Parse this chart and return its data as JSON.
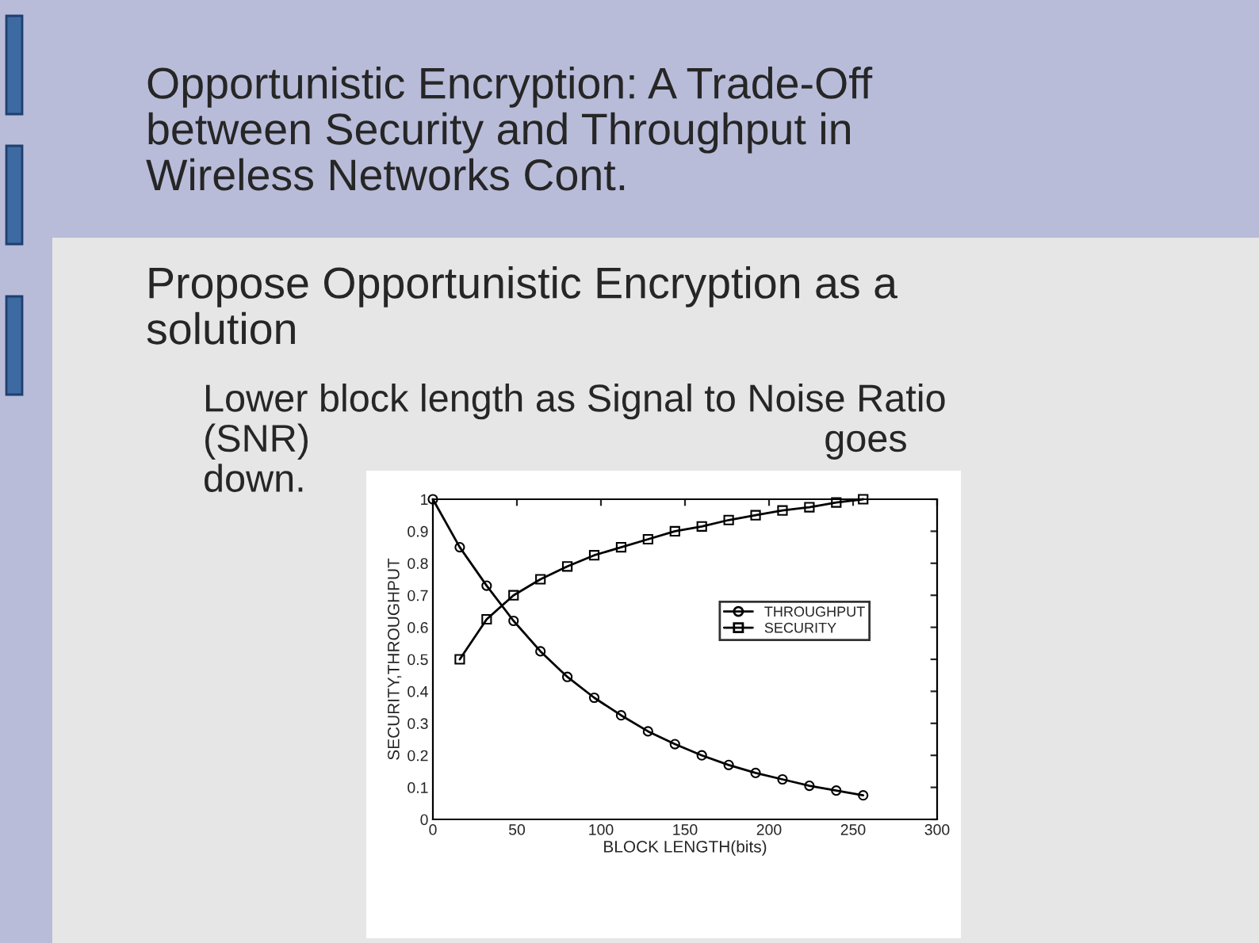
{
  "chart_data": {
    "type": "line",
    "title": "Opportunistic Encryption: A Trade-Off\nbetween Security and Throughput in\nWireless Networks Cont.",
    "annotations": [
      "Propose Opportunistic Encryption as a\nsolution",
      "Lower block length as Signal to Noise Ratio\n(SNR)                                                goes\ndown."
    ],
    "xlabel": "BLOCK LENGTH(bits)",
    "ylabel": "SECURITY,THROUGHPUT",
    "series": [
      {
        "name": "THROUGHPUT",
        "color": "#000000",
        "marker": "circle",
        "x": [
          0,
          16,
          32,
          48,
          64,
          80,
          96,
          112,
          128,
          144,
          160,
          176,
          192,
          208,
          224,
          240,
          256
        ],
        "values": [
          1.0,
          0.85,
          0.73,
          0.62,
          0.525,
          0.445,
          0.38,
          0.325,
          0.275,
          0.235,
          0.2,
          0.17,
          0.145,
          0.125,
          0.105,
          0.09,
          0.075
        ]
      },
      {
        "name": "SECURITY",
        "color": "#000000",
        "marker": "square",
        "x": [
          16,
          32,
          48,
          64,
          80,
          96,
          112,
          128,
          144,
          160,
          176,
          192,
          208,
          224,
          240,
          256
        ],
        "values": [
          0.5,
          0.625,
          0.7,
          0.75,
          0.79,
          0.825,
          0.85,
          0.875,
          0.9,
          0.915,
          0.935,
          0.95,
          0.965,
          0.975,
          0.99,
          1.0
        ]
      }
    ],
    "xlim": [
      0,
      300
    ],
    "xticks": [
      0,
      50,
      100,
      150,
      200,
      250,
      300
    ],
    "ylim": [
      0,
      1
    ],
    "yticks": [
      0,
      0.1,
      0.2,
      0.3,
      0.4,
      0.5,
      0.6,
      0.7,
      0.8,
      0.9,
      1
    ],
    "grid": false,
    "legend": "center right",
    "line_style": "solid"
  }
}
